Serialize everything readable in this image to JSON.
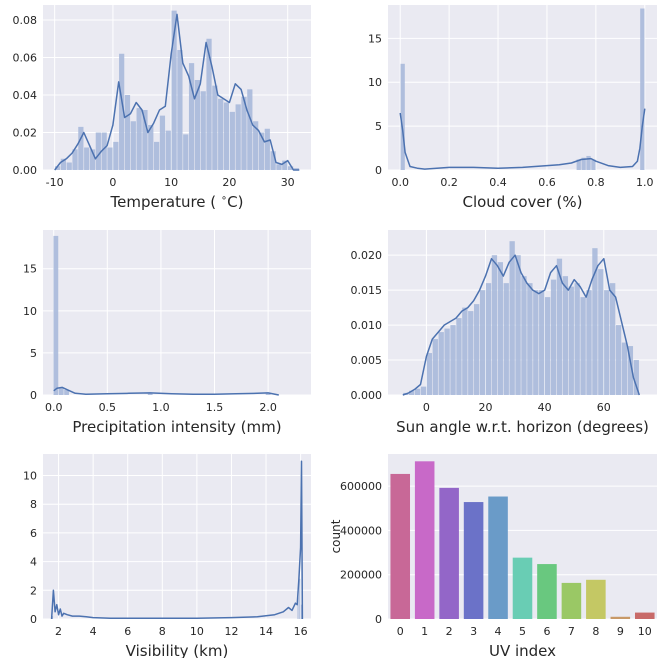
{
  "colors": {
    "axes_bg": "#eaeaf2",
    "grid": "#ffffff",
    "hist_bar": "#a8b9da",
    "kde_line": "#4c72b0",
    "text": "#262626",
    "uv_bars": [
      "#c86897",
      "#c869c8",
      "#9366c8",
      "#6b72c8",
      "#6a9bc8",
      "#69cdb4",
      "#69c87f",
      "#9ac865",
      "#c4c864",
      "#c89968",
      "#c86a69"
    ]
  },
  "chart_data": [
    {
      "type": "area",
      "panel": "temperature",
      "xlabel": "Temperature ( ∘C)",
      "ylabel": "",
      "xlim": [
        -12,
        34
      ],
      "ylim": [
        0,
        0.088
      ],
      "xticks": [
        -10,
        0,
        10,
        20,
        30
      ],
      "yticks": [
        0.0,
        0.02,
        0.04,
        0.06,
        0.08
      ],
      "ytick_labels": [
        "0.00",
        "0.02",
        "0.04",
        "0.06",
        "0.08"
      ],
      "hist_x": [
        -9.5,
        -8.5,
        -7.5,
        -6.5,
        -5.5,
        -4.5,
        -3.5,
        -2.5,
        -1.5,
        -0.5,
        0.5,
        1.5,
        2.5,
        3.5,
        4.5,
        5.5,
        6.5,
        7.5,
        8.5,
        9.5,
        10.5,
        11.5,
        12.5,
        13.5,
        14.5,
        15.5,
        16.5,
        17.5,
        18.5,
        19.5,
        20.5,
        21.5,
        22.5,
        23.5,
        24.5,
        25.5,
        26.5,
        27.5,
        28.5,
        29.5,
        30.5,
        31.5
      ],
      "hist_y": [
        0.002,
        0.006,
        0.004,
        0.011,
        0.023,
        0.012,
        0.011,
        0.02,
        0.02,
        0.012,
        0.015,
        0.062,
        0.04,
        0.026,
        0.033,
        0.032,
        0.024,
        0.015,
        0.029,
        0.021,
        0.085,
        0.064,
        0.019,
        0.057,
        0.048,
        0.042,
        0.07,
        0.045,
        0.038,
        0.036,
        0.031,
        0.035,
        0.039,
        0.043,
        0.026,
        0.02,
        0.022,
        0.01,
        0.003,
        0.005,
        0.002,
        0.001
      ],
      "kde_x": [
        -10,
        -9,
        -8,
        -7,
        -6,
        -5,
        -4,
        -3,
        -2,
        -1,
        0,
        1,
        2,
        3,
        4,
        5,
        6,
        7,
        8,
        9,
        10,
        11,
        12,
        13,
        14,
        15,
        16,
        17,
        18,
        19,
        20,
        21,
        22,
        23,
        24,
        25,
        26,
        27,
        28,
        29,
        30,
        31,
        32
      ],
      "kde_y": [
        0.0,
        0.004,
        0.006,
        0.009,
        0.014,
        0.02,
        0.013,
        0.006,
        0.01,
        0.013,
        0.024,
        0.047,
        0.028,
        0.03,
        0.036,
        0.032,
        0.02,
        0.025,
        0.032,
        0.034,
        0.062,
        0.083,
        0.057,
        0.05,
        0.038,
        0.046,
        0.068,
        0.055,
        0.04,
        0.038,
        0.036,
        0.046,
        0.043,
        0.032,
        0.024,
        0.021,
        0.015,
        0.016,
        0.004,
        0.003,
        0.005,
        0.0,
        0.0
      ]
    },
    {
      "type": "area",
      "panel": "cloud_cover",
      "xlabel": "Cloud cover (%)",
      "ylabel": "",
      "xlim": [
        -0.05,
        1.05
      ],
      "ylim": [
        0,
        18.8
      ],
      "xticks": [
        0.0,
        0.2,
        0.4,
        0.6,
        0.8,
        1.0
      ],
      "xtick_labels": [
        "0.0",
        "0.2",
        "0.4",
        "0.6",
        "0.8",
        "1.0"
      ],
      "yticks": [
        0,
        5,
        10,
        15
      ],
      "ytick_labels": [
        "0",
        "5",
        "10",
        "15"
      ],
      "hist_x": [
        0.01,
        0.73,
        0.75,
        0.77,
        0.79,
        0.99
      ],
      "hist_y": [
        12.1,
        1.2,
        1.4,
        1.6,
        1.2,
        18.4
      ],
      "kde_x": [
        0.0,
        0.01,
        0.02,
        0.04,
        0.07,
        0.1,
        0.2,
        0.3,
        0.4,
        0.5,
        0.6,
        0.65,
        0.7,
        0.74,
        0.78,
        0.8,
        0.85,
        0.9,
        0.95,
        0.97,
        0.98,
        0.99,
        1.0
      ],
      "kde_y": [
        6.5,
        4.5,
        2.0,
        0.4,
        0.2,
        0.1,
        0.3,
        0.3,
        0.2,
        0.3,
        0.5,
        0.6,
        0.8,
        1.2,
        1.3,
        1.0,
        0.5,
        0.3,
        0.4,
        1.0,
        2.5,
        5.0,
        7.0
      ]
    },
    {
      "type": "area",
      "panel": "precipitation",
      "xlabel": "Precipitation intensity (mm)",
      "ylabel": "",
      "xlim": [
        -0.1,
        2.4
      ],
      "ylim": [
        0,
        19.6
      ],
      "xticks": [
        0.0,
        0.5,
        1.0,
        1.5,
        2.0
      ],
      "xtick_labels": [
        "0.0",
        "0.5",
        "1.0",
        "1.5",
        "2.0"
      ],
      "yticks": [
        0,
        5,
        10,
        15
      ],
      "ytick_labels": [
        "0",
        "5",
        "10",
        "15"
      ],
      "hist_x": [
        0.02,
        0.07,
        0.12,
        0.9,
        2.0
      ],
      "hist_y": [
        18.9,
        0.9,
        0.6,
        0.15,
        0.15
      ],
      "kde_x": [
        0.0,
        0.03,
        0.08,
        0.13,
        0.2,
        0.3,
        0.5,
        0.7,
        0.9,
        1.1,
        1.3,
        1.5,
        1.7,
        1.9,
        2.0,
        2.1
      ],
      "kde_y": [
        0.5,
        0.8,
        0.9,
        0.6,
        0.2,
        0.1,
        0.15,
        0.2,
        0.25,
        0.15,
        0.1,
        0.1,
        0.15,
        0.2,
        0.25,
        0.0
      ]
    },
    {
      "type": "area",
      "panel": "sun_angle",
      "xlabel": "Sun angle w.r.t. horizon (degrees)",
      "ylabel": "",
      "xlim": [
        -13,
        78
      ],
      "ylim": [
        0,
        0.0236
      ],
      "xticks": [
        0,
        20,
        40,
        60
      ],
      "xtick_labels": [
        "0",
        "20",
        "40",
        "60"
      ],
      "yticks": [
        0.0,
        0.005,
        0.01,
        0.015,
        0.02
      ],
      "ytick_labels": [
        "0.000",
        "0.005",
        "0.010",
        "0.015",
        "0.020"
      ],
      "hist_x": [
        -7,
        -5,
        -3,
        -1,
        1,
        3,
        5,
        7,
        9,
        11,
        13,
        15,
        17,
        19,
        21,
        23,
        25,
        27,
        29,
        31,
        33,
        35,
        37,
        39,
        41,
        43,
        45,
        47,
        49,
        51,
        53,
        55,
        57,
        59,
        61,
        63,
        65,
        67,
        69,
        71
      ],
      "hist_y": [
        0.0003,
        0.0006,
        0.0009,
        0.0012,
        0.006,
        0.008,
        0.009,
        0.0095,
        0.01,
        0.011,
        0.0125,
        0.012,
        0.013,
        0.015,
        0.016,
        0.02,
        0.019,
        0.016,
        0.022,
        0.02,
        0.017,
        0.016,
        0.015,
        0.015,
        0.014,
        0.0165,
        0.0195,
        0.017,
        0.0155,
        0.016,
        0.014,
        0.015,
        0.021,
        0.018,
        0.015,
        0.016,
        0.01,
        0.0075,
        0.007,
        0.005
      ],
      "kde_x": [
        -8,
        -6,
        -4,
        -2,
        0,
        2,
        4,
        6,
        8,
        10,
        12,
        14,
        16,
        18,
        20,
        22,
        24,
        26,
        28,
        30,
        32,
        34,
        36,
        38,
        40,
        42,
        44,
        46,
        48,
        50,
        52,
        54,
        56,
        58,
        60,
        62,
        64,
        66,
        68,
        70,
        72
      ],
      "kde_y": [
        0.0,
        0.0003,
        0.0008,
        0.0015,
        0.0055,
        0.008,
        0.009,
        0.01,
        0.0105,
        0.011,
        0.012,
        0.0125,
        0.0135,
        0.015,
        0.017,
        0.0195,
        0.0185,
        0.017,
        0.019,
        0.02,
        0.0175,
        0.016,
        0.015,
        0.0145,
        0.015,
        0.0175,
        0.0185,
        0.016,
        0.015,
        0.0165,
        0.0155,
        0.014,
        0.0165,
        0.0185,
        0.0195,
        0.015,
        0.014,
        0.0105,
        0.007,
        0.0025,
        0.0
      ]
    },
    {
      "type": "area",
      "panel": "visibility",
      "xlabel": "Visibility (km)",
      "ylabel": "",
      "xlim": [
        1.1,
        16.6
      ],
      "ylim": [
        0,
        11.5
      ],
      "xticks": [
        2,
        4,
        6,
        8,
        10,
        12,
        14,
        16
      ],
      "xtick_labels": [
        "2",
        "4",
        "6",
        "8",
        "10",
        "12",
        "14",
        "16"
      ],
      "yticks": [
        0,
        2,
        4,
        6,
        8,
        10
      ],
      "ytick_labels": [
        "0",
        "2",
        "4",
        "6",
        "8",
        "10"
      ],
      "hist_x": [
        1.65,
        15.85,
        15.95,
        16.05
      ],
      "hist_y": [
        0.2,
        1.5,
        2.8,
        1.0
      ],
      "kde_x": [
        1.6,
        1.7,
        1.8,
        1.9,
        2.0,
        2.1,
        2.2,
        2.3,
        2.5,
        2.8,
        3.2,
        3.6,
        4.0,
        5.0,
        6.0,
        8.0,
        10.0,
        12.0,
        13.5,
        14.5,
        15.0,
        15.3,
        15.5,
        15.7,
        15.8,
        15.9,
        16.0,
        16.05,
        16.1
      ],
      "kde_y": [
        0.0,
        2.0,
        0.5,
        1.0,
        0.3,
        0.7,
        0.2,
        0.4,
        0.3,
        0.2,
        0.2,
        0.15,
        0.1,
        0.05,
        0.05,
        0.05,
        0.05,
        0.1,
        0.15,
        0.3,
        0.5,
        0.8,
        0.6,
        1.1,
        1.0,
        2.8,
        5.0,
        11.0,
        0.0
      ]
    },
    {
      "type": "bar",
      "panel": "uv_index",
      "xlabel": "UV index",
      "ylabel": "count",
      "categories": [
        "0",
        "1",
        "2",
        "3",
        "4",
        "5",
        "6",
        "7",
        "8",
        "9",
        "10"
      ],
      "values": [
        655000,
        712000,
        592000,
        528000,
        553000,
        277000,
        248000,
        163000,
        177000,
        10000,
        29000
      ],
      "ylim": [
        0,
        745000
      ],
      "yticks": [
        0,
        200000,
        400000,
        600000
      ],
      "ytick_labels": [
        "0",
        "200000",
        "400000",
        "600000"
      ]
    }
  ]
}
